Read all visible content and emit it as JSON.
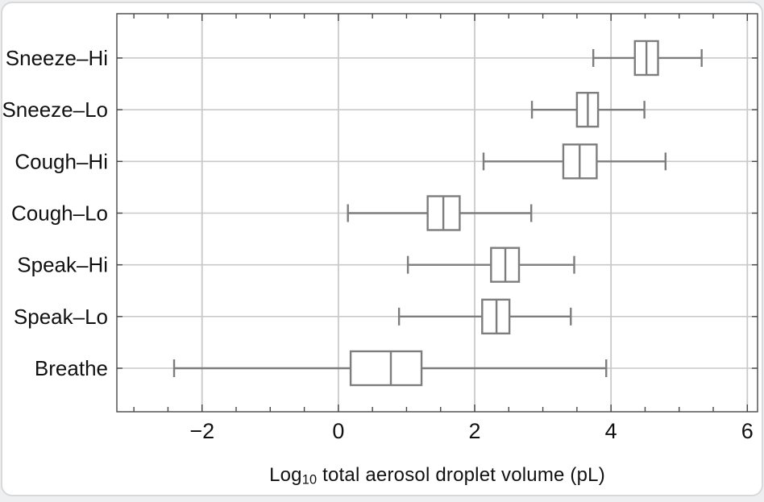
{
  "colors": {
    "background": "#ffffff",
    "page_strip": "#edeff1",
    "card_border": "#d9d9d9",
    "frame": "#474747",
    "grid": "#c9c9c9",
    "box_stroke": "#7d7d7d",
    "box_fill": "#ffffff",
    "text": "#111111"
  },
  "chart_data": {
    "type": "boxplot-horizontal",
    "title": "",
    "xlabel_parts": {
      "prefix": "Log",
      "subscript": "10",
      "rest": " total aerosol droplet volume (pL)"
    },
    "xlabel_plain": "Log10 total aerosol droplet volume (pL)",
    "ylabel": "",
    "xlim": [
      -3.25,
      6.15
    ],
    "xticks_labeled": [
      -2,
      0,
      2,
      4,
      6
    ],
    "xtick_labels": [
      "−2",
      "0",
      "2",
      "4",
      "6"
    ],
    "minor_tick_step": 0.5,
    "minor_tick_min": -3,
    "minor_tick_max": 6,
    "grid": true,
    "legend": null,
    "categories": [
      "Sneeze–Hi",
      "Sneeze–Lo",
      "Cough–Hi",
      "Cough–Lo",
      "Speak–Hi",
      "Speak–Lo",
      "Breathe"
    ],
    "series": [
      {
        "category": "Sneeze–Hi",
        "whisker_low": 3.74,
        "q1": 4.35,
        "median": 4.52,
        "q3": 4.69,
        "whisker_high": 5.33
      },
      {
        "category": "Sneeze–Lo",
        "whisker_low": 2.84,
        "q1": 3.5,
        "median": 3.66,
        "q3": 3.81,
        "whisker_high": 4.49
      },
      {
        "category": "Cough–Hi",
        "whisker_low": 2.13,
        "q1": 3.3,
        "median": 3.54,
        "q3": 3.79,
        "whisker_high": 4.8
      },
      {
        "category": "Cough–Lo",
        "whisker_low": 0.14,
        "q1": 1.31,
        "median": 1.54,
        "q3": 1.78,
        "whisker_high": 2.83
      },
      {
        "category": "Speak–Hi",
        "whisker_low": 1.02,
        "q1": 2.24,
        "median": 2.45,
        "q3": 2.65,
        "whisker_high": 3.46
      },
      {
        "category": "Speak–Lo",
        "whisker_low": 0.89,
        "q1": 2.11,
        "median": 2.32,
        "q3": 2.51,
        "whisker_high": 3.41
      },
      {
        "category": "Breathe",
        "whisker_low": -2.41,
        "q1": 0.18,
        "median": 0.77,
        "q3": 1.22,
        "whisker_high": 3.93
      }
    ]
  }
}
